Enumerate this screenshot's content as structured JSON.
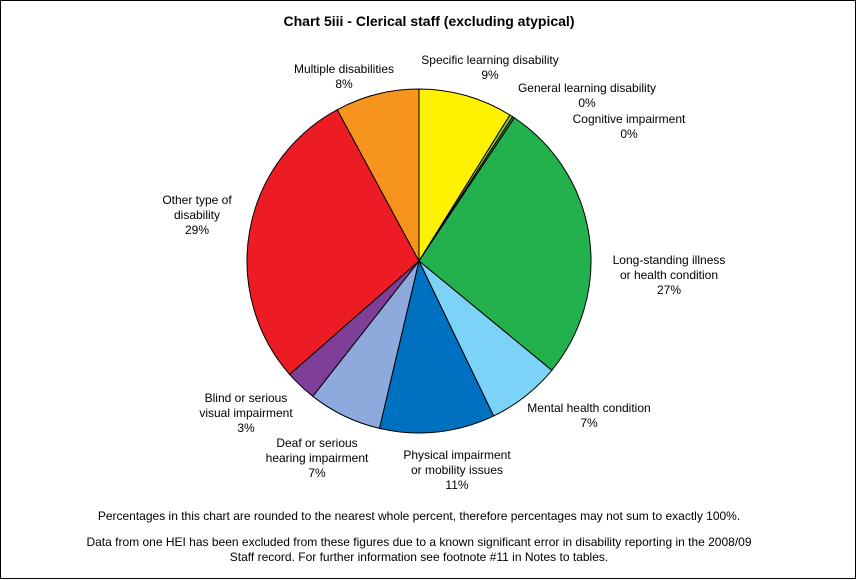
{
  "chart_data": {
    "type": "pie",
    "title": "Chart 5iii - Clerical staff (excluding atypical)",
    "slices": [
      {
        "label": "Specific learning disability",
        "value": 9,
        "display": "9%",
        "color": "#FFF200"
      },
      {
        "label": "General learning disability",
        "value": 0.3,
        "display": "0%",
        "color": "#8DC63F"
      },
      {
        "label": "Cognitive impairment",
        "value": 0.2,
        "display": "0%",
        "color": "#3A8F3A"
      },
      {
        "label": "Long-standing illness or health condition",
        "value": 27,
        "display": "27%",
        "color": "#22B14C"
      },
      {
        "label": "Mental health condition",
        "value": 7,
        "display": "7%",
        "color": "#7DD3F7"
      },
      {
        "label": "Physical impairment or mobility issues",
        "value": 11,
        "display": "11%",
        "color": "#0070C0"
      },
      {
        "label": "Deaf or serious hearing impairment",
        "value": 7,
        "display": "7%",
        "color": "#8EA9DB"
      },
      {
        "label": "Blind or serious visual impairment",
        "value": 3,
        "display": "3%",
        "color": "#7F3F98"
      },
      {
        "label": "Other type of disability",
        "value": 29,
        "display": "29%",
        "color": "#ED1C24"
      },
      {
        "label": "Multiple disabilities",
        "value": 8,
        "display": "8%",
        "color": "#F7941D"
      }
    ],
    "labels": [
      {
        "lines": [
          "Specific learning disability",
          "9%"
        ]
      },
      {
        "lines": [
          "General learning disability",
          "0%"
        ]
      },
      {
        "lines": [
          "Cognitive impairment",
          "0%"
        ]
      },
      {
        "lines": [
          "Long-standing illness",
          "or health condition",
          "27%"
        ]
      },
      {
        "lines": [
          "Mental health condition",
          "7%"
        ]
      },
      {
        "lines": [
          "Physical impairment",
          "or mobility issues",
          "11%"
        ]
      },
      {
        "lines": [
          "Deaf or serious",
          "hearing impairment",
          "7%"
        ]
      },
      {
        "lines": [
          "Blind or serious",
          "visual impairment",
          "3%"
        ]
      },
      {
        "lines": [
          "Other type of",
          "disability",
          "29%"
        ]
      },
      {
        "lines": [
          "Multiple disabilities",
          "8%"
        ]
      }
    ],
    "notes": [
      "Percentages in this chart are rounded to the nearest whole percent, therefore percentages may not sum to exactly 100%.",
      "Data from one HEI has been excluded from these figures due to a known significant error in disability reporting in the 2008/09",
      "Staff record. For further information see footnote #11 in Notes to tables."
    ]
  }
}
